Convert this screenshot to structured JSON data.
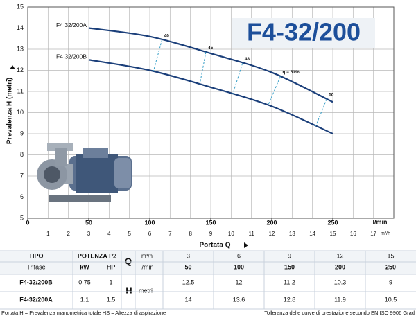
{
  "chart_data": {
    "type": "line",
    "title": "F4-32/200",
    "y_label": "Prevalenza H (metri)",
    "x_label": "Portata Q",
    "x_unit": "l/min",
    "x2_unit": "m³/h",
    "x": [
      50,
      100,
      150,
      200,
      250
    ],
    "series": [
      {
        "name": "F4 32/200A",
        "color": "#1b3f7a",
        "values": [
          14,
          13.6,
          12.8,
          11.9,
          10.5
        ]
      },
      {
        "name": "F4 32/200B",
        "color": "#1b3f7a",
        "values": [
          12.5,
          12,
          11.2,
          10.3,
          9
        ]
      }
    ],
    "xlim": [
      0,
      300
    ],
    "xticks": [
      0,
      50,
      100,
      150,
      200,
      250
    ],
    "x2lim": [
      0,
      18
    ],
    "x2ticks": [
      1,
      2,
      3,
      4,
      5,
      6,
      7,
      8,
      9,
      10,
      11,
      12,
      13,
      14,
      15,
      16,
      17
    ],
    "ylim": [
      5,
      15
    ],
    "yticks": [
      5,
      6,
      7,
      8,
      9,
      10,
      11,
      12,
      13,
      14,
      15
    ],
    "grid": true,
    "efficiency": [
      {
        "label": "40",
        "q": [
          110,
          103
        ]
      },
      {
        "label": "45",
        "q": [
          146,
          141
        ]
      },
      {
        "label": "48",
        "q": [
          176,
          168
        ]
      },
      {
        "label": "η = 51%",
        "q": [
          207,
          197
        ]
      },
      {
        "label": "50",
        "q": [
          245,
          236
        ]
      }
    ]
  },
  "table": {
    "tipo": "TIPO",
    "trifase": "Trifase",
    "potenza": "POTENZA P2",
    "kw": "kW",
    "hp": "HP",
    "q": "Q",
    "m3h": "m³/h",
    "lmin": "l/min",
    "h": "H",
    "metri": "metri",
    "m3h_values": [
      3,
      6,
      9,
      12,
      15
    ],
    "rows": [
      {
        "name": "F4-32/200B",
        "kw": 0.75,
        "hp": 1
      },
      {
        "name": "F4-32/200A",
        "kw": 1.1,
        "hp": 1.5
      }
    ]
  },
  "footer": {
    "left": "Portata  H = Prevalenza manometrica totale  HS = Altezza di aspirazione",
    "right": "Tolleranza delle curve di prestazione secondo EN ISO 9906 Grad"
  }
}
